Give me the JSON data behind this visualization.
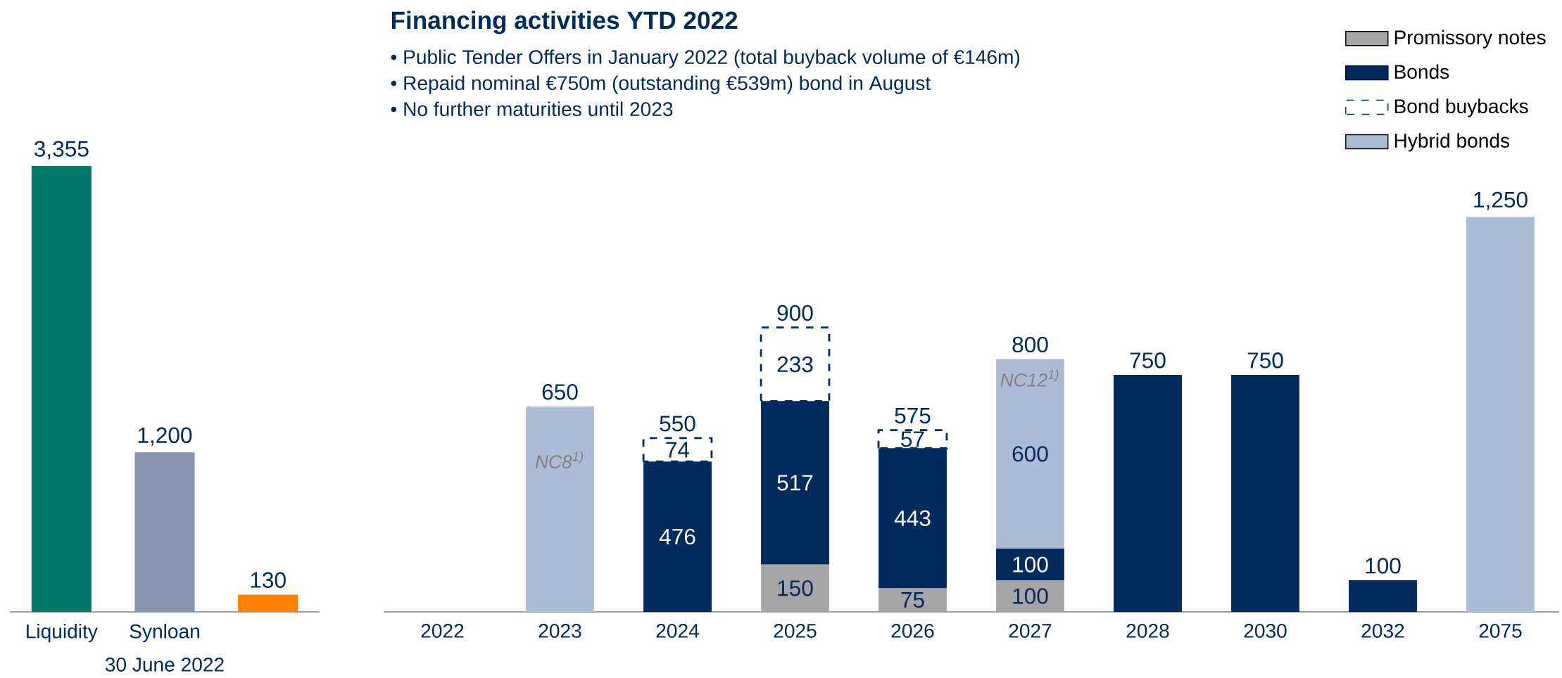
{
  "chart_data": [
    {
      "type": "bar",
      "xlabel": "30 June 2022",
      "categories": [
        "Liquidity",
        "Synloan",
        null
      ],
      "values": [
        3355,
        1200,
        130
      ],
      "colors": [
        "#00796b",
        "#8593b0",
        "#ff8000"
      ],
      "value_labels": [
        "3,355",
        "1,200",
        "130"
      ]
    },
    {
      "type": "bar",
      "title": "Financing activities YTD 2022",
      "stacked": true,
      "legend": "top right",
      "annotations": [
        "•    Public Tender Offers in January 2022 (total buyback volume of €146m)",
        "•    Repaid nominal €750m (outstanding €539m) bond in August",
        "•    No further maturities until 2023",
        "NC8$^{1)}$",
        "NC12$^{1)}$"
      ],
      "categories": [
        "2022",
        "2023",
        "2024",
        "2025",
        "2026",
        "2027",
        "2028",
        "2030",
        "2032",
        "2075"
      ],
      "totals": [
        null,
        "650",
        "550",
        "900",
        "575",
        "800",
        "750",
        "750",
        "100",
        "1,250"
      ],
      "series": [
        {
          "name": "Promissory notes",
          "color": "#a6a6a8",
          "values": [
            null,
            null,
            null,
            150,
            75,
            100,
            null,
            null,
            null,
            null
          ],
          "value_labels": [
            null,
            null,
            null,
            "150",
            "75",
            "100",
            null,
            null,
            null,
            null
          ]
        },
        {
          "name": "Bonds",
          "color": "#002b5c",
          "values": [
            null,
            null,
            476,
            517,
            443,
            100,
            750,
            750,
            100,
            null
          ],
          "value_labels": [
            null,
            null,
            "476",
            "517",
            "443",
            "100",
            null,
            null,
            null,
            null
          ]
        },
        {
          "name": "Bond buybacks",
          "color": "#002b5c",
          "line_style": "dashed",
          "values": [
            null,
            null,
            74,
            233,
            57,
            null,
            null,
            null,
            null,
            null
          ],
          "value_labels": [
            null,
            null,
            "74",
            "233",
            "57",
            null,
            null,
            null,
            null,
            null
          ]
        },
        {
          "name": "Hybrid bonds",
          "color": "#adbcd6",
          "values": [
            null,
            650,
            null,
            null,
            null,
            600,
            null,
            null,
            null,
            1250
          ],
          "value_labels": [
            null,
            null,
            null,
            null,
            null,
            "600",
            null,
            null,
            null,
            null
          ]
        }
      ]
    }
  ]
}
